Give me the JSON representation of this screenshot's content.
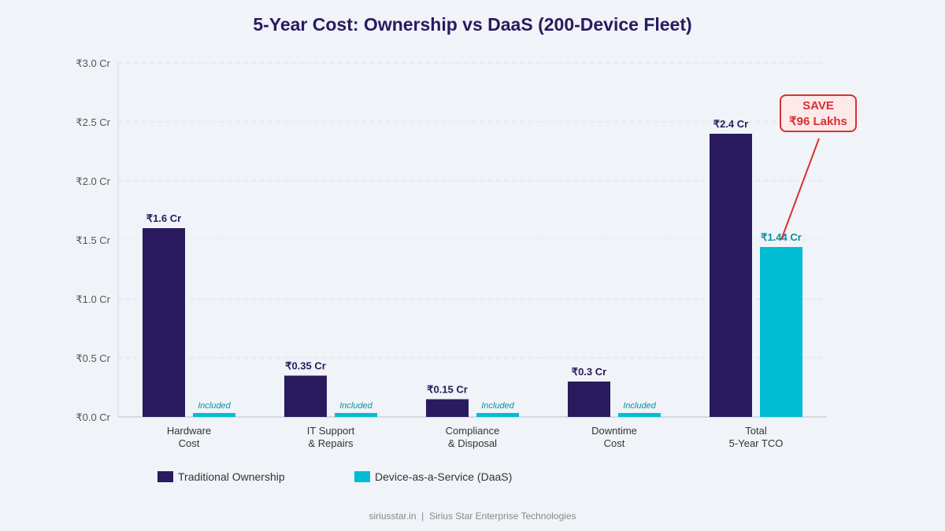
{
  "chart_data": {
    "type": "bar",
    "title": "5-Year Cost: Ownership vs DaaS (200-Device Fleet)",
    "categories": [
      [
        "Hardware",
        "Cost"
      ],
      [
        "IT Support",
        "& Repairs"
      ],
      [
        "Compliance",
        "& Disposal"
      ],
      [
        "Downtime",
        "Cost"
      ],
      [
        "Total",
        "5-Year TCO"
      ]
    ],
    "series": [
      {
        "name": "Traditional Ownership",
        "color": "#2a1a5e",
        "values": [
          1.6,
          0.35,
          0.15,
          0.3,
          2.4
        ],
        "labels": [
          "₹1.6 Cr",
          "₹0.35 Cr",
          "₹0.15 Cr",
          "₹0.3 Cr",
          "₹2.4 Cr"
        ]
      },
      {
        "name": "Device-as-a-Service (DaaS)",
        "color": "#00bcd4",
        "values": [
          null,
          null,
          null,
          null,
          1.44
        ],
        "labels": [
          "Included",
          "Included",
          "Included",
          "Included",
          "₹1.44 Cr"
        ]
      }
    ],
    "yticks": [
      "₹0.0 Cr",
      "₹0.5 Cr",
      "₹1.0 Cr",
      "₹1.5 Cr",
      "₹2.0 Cr",
      "₹2.5 Cr",
      "₹3.0 Cr"
    ],
    "ylim": [
      0,
      3
    ],
    "grid": true,
    "legend": "bottom",
    "annotation": {
      "line1": "SAVE",
      "line2": "₹96 Lakhs",
      "color": "#d93030"
    }
  },
  "footer": "siriusstar.in  |  Sirius Star Enterprise Technologies"
}
